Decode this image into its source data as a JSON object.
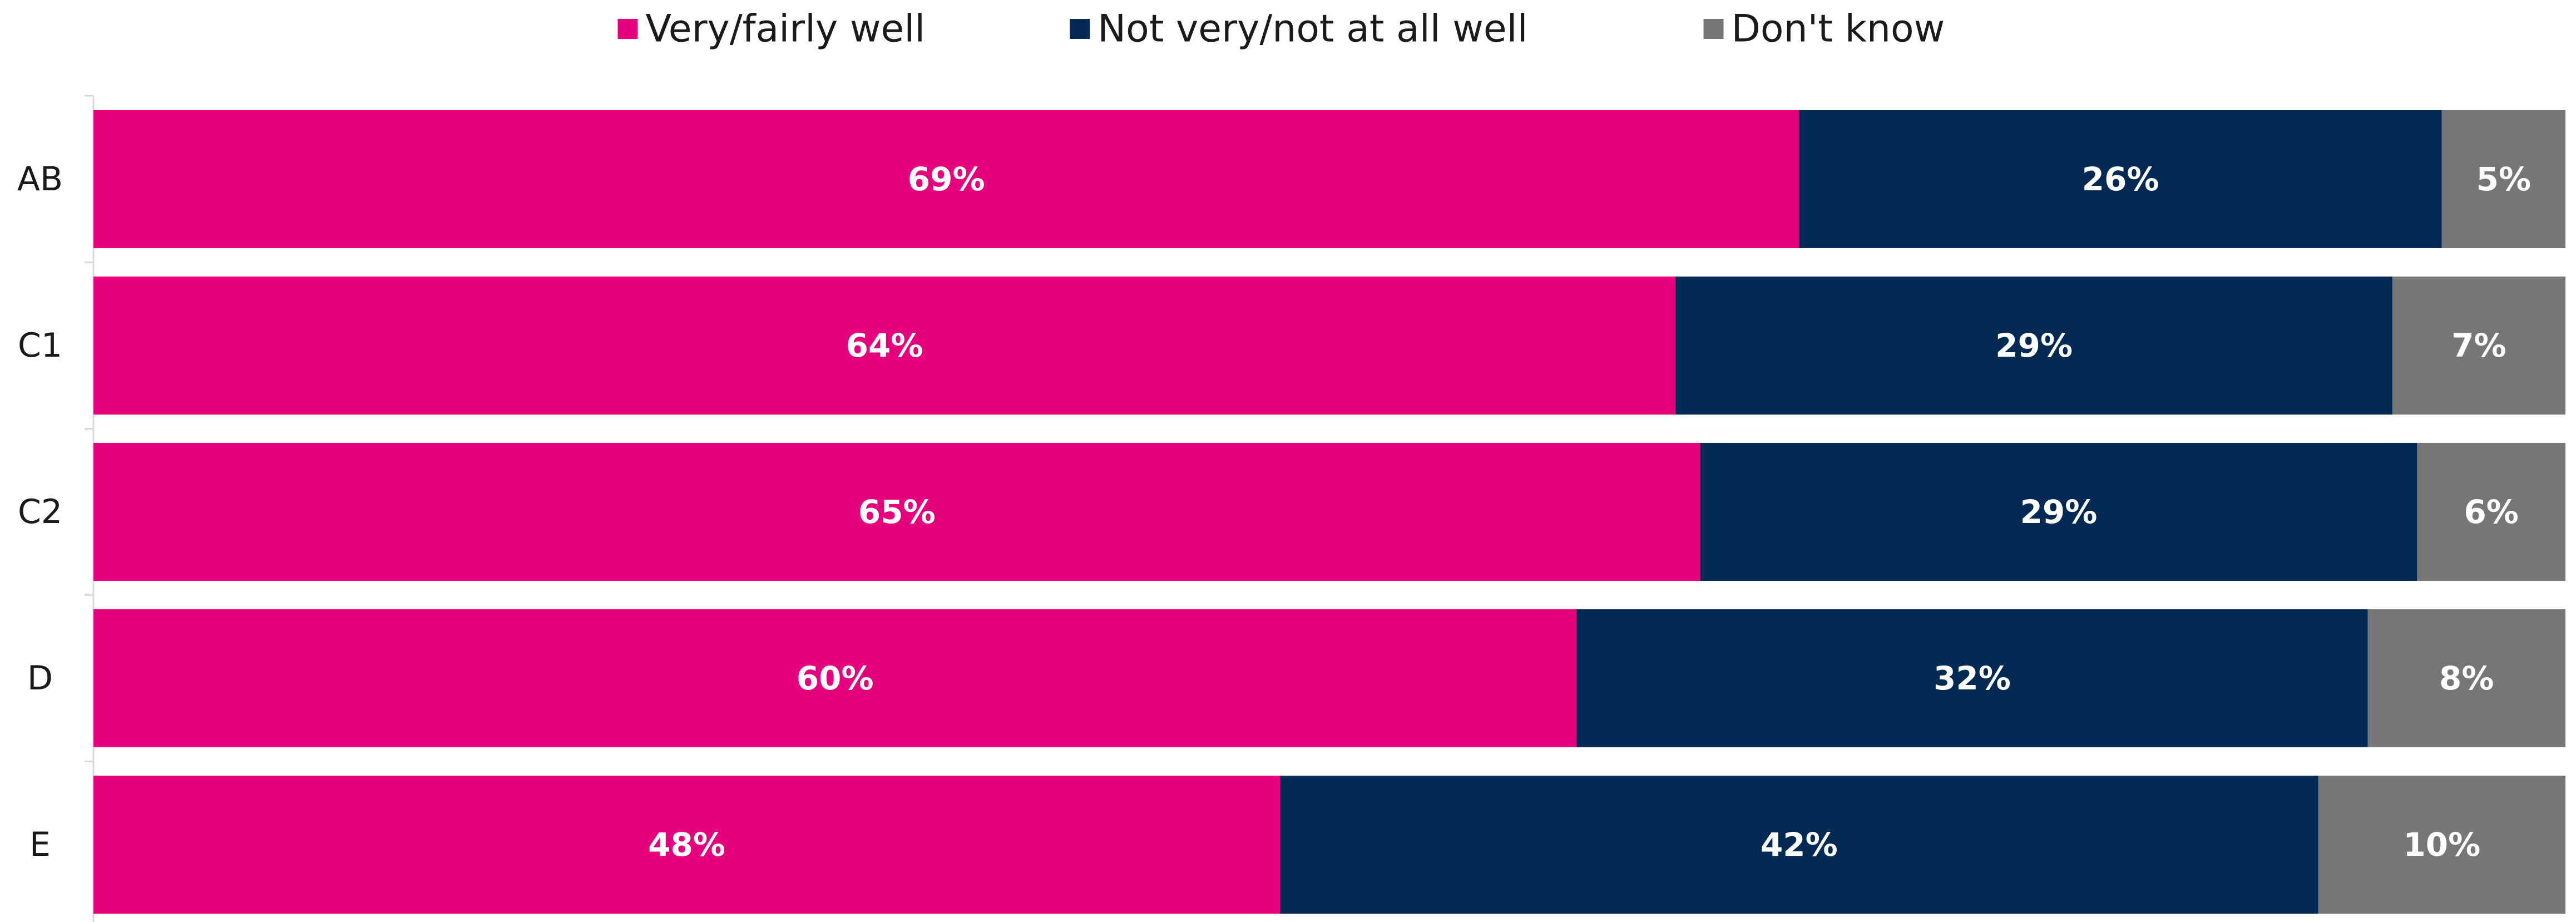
{
  "chart_data": {
    "type": "bar",
    "orientation": "horizontal",
    "stacked": true,
    "categories": [
      "AB",
      "C1",
      "C2",
      "D",
      "E"
    ],
    "series": [
      {
        "name": "Very/fairly well",
        "color": "#e6007e",
        "values": [
          69,
          64,
          65,
          60,
          48
        ],
        "labels": [
          "69%",
          "64%",
          "65%",
          "60%",
          "48%"
        ]
      },
      {
        "name": "Not very/not at all well",
        "color": "#002a54",
        "values": [
          26,
          29,
          29,
          32,
          42
        ],
        "labels": [
          "26%",
          "29%",
          "29%",
          "32%",
          "42%"
        ]
      },
      {
        "name": "Don't know",
        "color": "#767676",
        "values": [
          5,
          7,
          6,
          8,
          10
        ],
        "labels": [
          "5%",
          "7%",
          "6%",
          "8%",
          "10%"
        ]
      }
    ],
    "xlim": [
      0,
      100
    ],
    "legend_position": "top-center",
    "grid": false,
    "data_labels": true
  }
}
